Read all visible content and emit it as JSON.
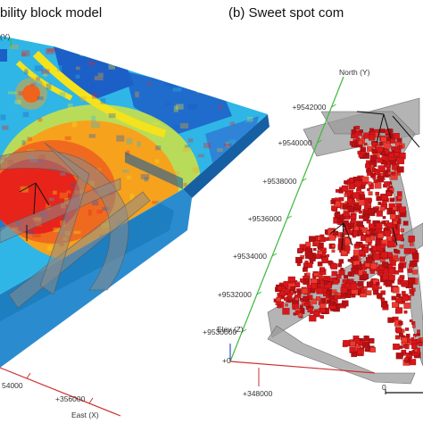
{
  "panel_a": {
    "title": "bility block model",
    "north_axis_label": "(Y)",
    "east_ticks": [
      "54000",
      "+356000"
    ],
    "east_axis_label": "East (X)"
  },
  "panel_b": {
    "title": "(b) Sweet spot com",
    "north_axis_label": "North (Y)",
    "north_ticks": [
      "+9542000",
      "+9540000",
      "+9538000",
      "+9536000",
      "+9534000",
      "+9532000",
      "+9530000"
    ],
    "elev_axis_label": "Elev (Z)",
    "elev_tick": "+0",
    "east_tick": "+348000",
    "scale_zero": "0"
  },
  "colors": {
    "block_red": "#e8241a",
    "block_orange": "#f6a21d",
    "block_yellow": "#f4e21c",
    "block_cyan": "#2fb6e6",
    "block_blue": "#1c5fc7",
    "axis_green": "#3cb83c",
    "axis_red": "#d03030",
    "axis_blue": "#3050d0",
    "sweet_red": "#d9161a",
    "fault_gray": "#9b9b9b"
  }
}
